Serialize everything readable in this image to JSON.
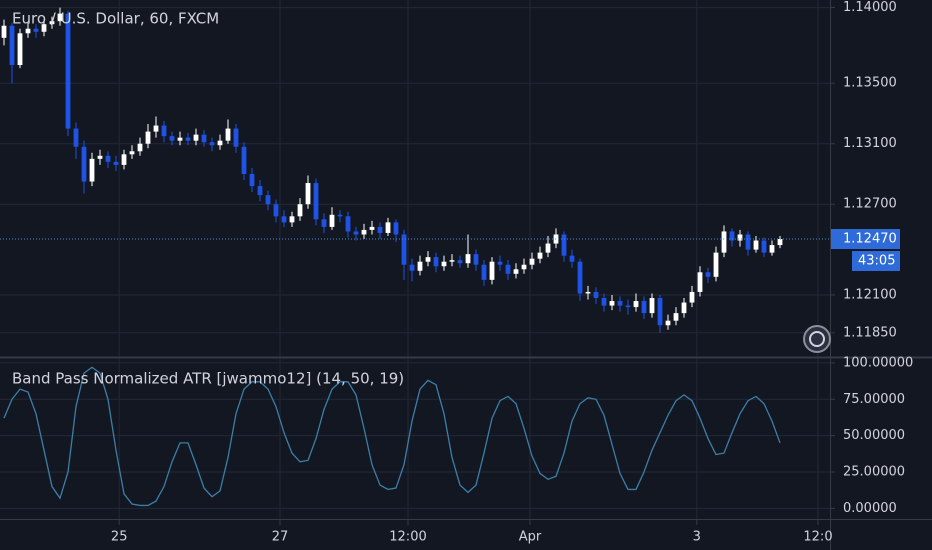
{
  "chart_data": [
    {
      "type": "candlestick",
      "title": "Euro / U.S. Dollar, 60, FXCM",
      "up_color": "#ffffff",
      "down_color": "#1e53e5",
      "xlim": [
        -0.5,
        103.25
      ],
      "ylim": [
        1.1169,
        1.1405
      ],
      "yticks": [
        {
          "value": 1.14,
          "label": "1.14000"
        },
        {
          "value": 1.135,
          "label": "1.13500"
        },
        {
          "value": 1.131,
          "label": "1.13100"
        },
        {
          "value": 1.127,
          "label": "1.12700"
        },
        {
          "value": 1.121,
          "label": "1.12100"
        },
        {
          "value": 1.1185,
          "label": "1.11850"
        }
      ],
      "grid": true,
      "last_price": {
        "value": 1.1247,
        "label": "1.12470"
      },
      "countdown": "43:05",
      "open": [
        1.138,
        1.1388,
        1.1362,
        1.1383,
        1.1386,
        1.1384,
        1.1389,
        1.1391,
        1.1396,
        1.132,
        1.1308,
        1.1285,
        1.13,
        1.1302,
        1.1298,
        1.1296,
        1.1303,
        1.1305,
        1.131,
        1.1318,
        1.1322,
        1.1315,
        1.1312,
        1.1314,
        1.1312,
        1.1316,
        1.1311,
        1.1309,
        1.1312,
        1.132,
        1.1308,
        1.129,
        1.1282,
        1.1276,
        1.127,
        1.1262,
        1.1258,
        1.1262,
        1.127,
        1.1284,
        1.126,
        1.1255,
        1.1263,
        1.1262,
        1.1252,
        1.125,
        1.1253,
        1.1255,
        1.1251,
        1.1258,
        1.125,
        1.123,
        1.1226,
        1.1232,
        1.1235,
        1.1229,
        1.1232,
        1.1233,
        1.1231,
        1.1237,
        1.123,
        1.122,
        1.1232,
        1.123,
        1.1224,
        1.1227,
        1.123,
        1.1234,
        1.1238,
        1.1244,
        1.125,
        1.1236,
        1.1232,
        1.1211,
        1.1212,
        1.1208,
        1.1203,
        1.1206,
        1.1203,
        1.1202,
        1.1206,
        1.1198,
        1.1208,
        1.119,
        1.1193,
        1.1198,
        1.1205,
        1.1212,
        1.1225,
        1.1222,
        1.1238,
        1.1252,
        1.1246,
        1.125,
        1.124,
        1.1246,
        1.1238,
        1.1243
      ],
      "high": [
        1.1392,
        1.139,
        1.1386,
        1.139,
        1.1389,
        1.1392,
        1.1394,
        1.14,
        1.1398,
        1.1324,
        1.1312,
        1.1304,
        1.1306,
        1.1305,
        1.1302,
        1.1306,
        1.1309,
        1.1314,
        1.1323,
        1.1328,
        1.1325,
        1.1318,
        1.1318,
        1.1317,
        1.132,
        1.1319,
        1.1314,
        1.1316,
        1.1326,
        1.1323,
        1.1311,
        1.1294,
        1.1286,
        1.1279,
        1.1273,
        1.1266,
        1.1265,
        1.1274,
        1.1289,
        1.1287,
        1.1264,
        1.1268,
        1.1266,
        1.1265,
        1.1255,
        1.1257,
        1.1259,
        1.1258,
        1.1261,
        1.126,
        1.1253,
        1.1234,
        1.1236,
        1.1239,
        1.1238,
        1.1236,
        1.1237,
        1.1236,
        1.125,
        1.124,
        1.1233,
        1.1235,
        1.1236,
        1.1233,
        1.1231,
        1.1234,
        1.1238,
        1.1242,
        1.1249,
        1.1254,
        1.1252,
        1.124,
        1.1234,
        1.1216,
        1.1215,
        1.1211,
        1.121,
        1.1209,
        1.1207,
        1.1211,
        1.1209,
        1.1211,
        1.121,
        1.1197,
        1.1202,
        1.1208,
        1.1216,
        1.1229,
        1.1228,
        1.1242,
        1.1256,
        1.1254,
        1.1253,
        1.1252,
        1.1249,
        1.1248,
        1.1246,
        1.1249
      ],
      "low": [
        1.1375,
        1.135,
        1.136,
        1.138,
        1.138,
        1.1381,
        1.1386,
        1.1388,
        1.1315,
        1.13,
        1.1277,
        1.1282,
        1.1296,
        1.1294,
        1.1292,
        1.1293,
        1.13,
        1.1302,
        1.1307,
        1.1314,
        1.1311,
        1.1309,
        1.1309,
        1.1309,
        1.1309,
        1.1308,
        1.1305,
        1.1306,
        1.131,
        1.1304,
        1.1286,
        1.1278,
        1.1272,
        1.1266,
        1.1258,
        1.1255,
        1.1255,
        1.1259,
        1.1267,
        1.1256,
        1.1251,
        1.1253,
        1.1258,
        1.1248,
        1.1246,
        1.1247,
        1.125,
        1.1247,
        1.1249,
        1.1245,
        1.122,
        1.1219,
        1.1223,
        1.1229,
        1.1225,
        1.1226,
        1.1229,
        1.1228,
        1.1228,
        1.1226,
        1.1216,
        1.1217,
        1.1226,
        1.122,
        1.1221,
        1.1224,
        1.1227,
        1.1231,
        1.1235,
        1.1241,
        1.1232,
        1.1228,
        1.1206,
        1.1207,
        1.1204,
        1.1199,
        1.12,
        1.1199,
        1.1197,
        1.1199,
        1.1194,
        1.1195,
        1.1185,
        1.1187,
        1.119,
        1.1195,
        1.1202,
        1.1209,
        1.1218,
        1.1219,
        1.1235,
        1.1242,
        1.1242,
        1.1236,
        1.1238,
        1.1235,
        1.1236,
        1.1241
      ],
      "close": [
        1.1388,
        1.1362,
        1.1383,
        1.1386,
        1.1384,
        1.1389,
        1.1391,
        1.1396,
        1.132,
        1.1308,
        1.1285,
        1.13,
        1.1302,
        1.1298,
        1.1296,
        1.1303,
        1.1305,
        1.131,
        1.1318,
        1.1322,
        1.1315,
        1.1312,
        1.1314,
        1.1312,
        1.1316,
        1.1311,
        1.1309,
        1.1312,
        1.132,
        1.1308,
        1.129,
        1.1282,
        1.1276,
        1.127,
        1.1262,
        1.1258,
        1.1262,
        1.127,
        1.1284,
        1.126,
        1.1255,
        1.1263,
        1.1262,
        1.1252,
        1.125,
        1.1253,
        1.1255,
        1.1251,
        1.1258,
        1.125,
        1.123,
        1.1226,
        1.1232,
        1.1235,
        1.1229,
        1.1232,
        1.1233,
        1.1231,
        1.1237,
        1.123,
        1.122,
        1.1232,
        1.123,
        1.1224,
        1.1227,
        1.123,
        1.1234,
        1.1238,
        1.1244,
        1.125,
        1.1236,
        1.1232,
        1.1211,
        1.1212,
        1.1208,
        1.1203,
        1.1206,
        1.1203,
        1.1202,
        1.1206,
        1.1198,
        1.1208,
        1.119,
        1.1193,
        1.1198,
        1.1205,
        1.1212,
        1.1225,
        1.1222,
        1.1238,
        1.1252,
        1.1246,
        1.125,
        1.124,
        1.1246,
        1.1238,
        1.1243,
        1.1247
      ]
    },
    {
      "type": "line",
      "title": "Band Pass Normalized ATR [jwammo12] (14, 50, 19)",
      "color": "#3b7fa8",
      "xlim": [
        -0.5,
        103.25
      ],
      "xticks": [
        {
          "value": 14.4,
          "label": "25"
        },
        {
          "value": 34.5,
          "label": "27"
        },
        {
          "value": 50.5,
          "label": "12:00"
        },
        {
          "value": 65.75,
          "label": "Apr"
        },
        {
          "value": 86.6,
          "label": "3"
        },
        {
          "value": 101.75,
          "label": "12:0"
        }
      ],
      "ylim": [
        -8,
        102
      ],
      "yticks": [
        {
          "value": 100,
          "label": "100.00000"
        },
        {
          "value": 75,
          "label": "75.00000"
        },
        {
          "value": 50,
          "label": "50.00000"
        },
        {
          "value": 25,
          "label": "25.00000"
        },
        {
          "value": 0,
          "label": "0.00000"
        }
      ],
      "grid": true,
      "values": [
        62,
        75,
        82,
        80,
        65,
        40,
        15,
        7,
        25,
        70,
        93,
        97,
        93,
        75,
        40,
        10,
        3,
        2,
        2,
        5,
        15,
        32,
        45,
        45,
        30,
        14,
        8,
        12,
        35,
        65,
        82,
        87,
        87,
        82,
        70,
        52,
        38,
        32,
        33,
        48,
        68,
        82,
        87,
        87,
        78,
        55,
        30,
        16,
        13,
        14,
        30,
        60,
        82,
        88,
        85,
        65,
        35,
        16,
        11,
        16,
        38,
        62,
        74,
        77,
        72,
        55,
        36,
        24,
        20,
        22,
        38,
        60,
        72,
        76,
        75,
        64,
        44,
        24,
        13,
        13,
        25,
        40,
        52,
        64,
        74,
        78,
        74,
        62,
        48,
        37,
        38,
        52,
        65,
        74,
        77,
        72,
        60,
        45
      ]
    }
  ]
}
